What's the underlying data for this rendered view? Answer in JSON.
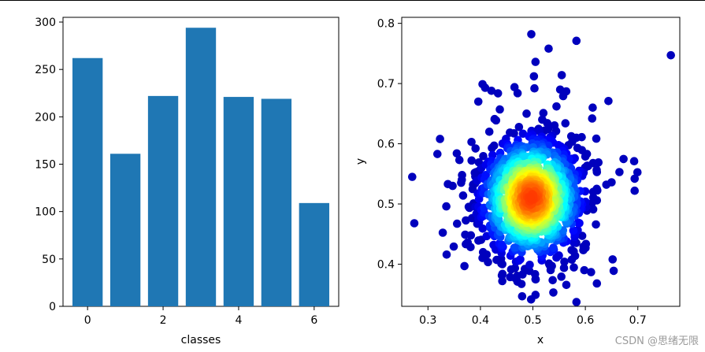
{
  "chart_data": [
    {
      "type": "bar",
      "categories": [
        0,
        1,
        2,
        3,
        4,
        5,
        6
      ],
      "values": [
        262,
        161,
        222,
        294,
        221,
        219,
        109
      ],
      "bar_color": "#1f77b4",
      "xlabel": "classes",
      "ylabel": "",
      "xlim": [
        -0.65,
        6.65
      ],
      "ylim": [
        0,
        305
      ],
      "xticks": [
        0,
        2,
        4,
        6
      ],
      "yticks": [
        0,
        50,
        100,
        150,
        200,
        250,
        300
      ],
      "grid": false
    },
    {
      "type": "scatter",
      "xlabel": "x",
      "ylabel": "y",
      "xlim": [
        0.25,
        0.78
      ],
      "ylim": [
        0.33,
        0.81
      ],
      "xticks": [
        0.3,
        0.4,
        0.5,
        0.6,
        0.7
      ],
      "yticks": [
        0.4,
        0.5,
        0.6,
        0.7,
        0.8
      ],
      "colormap": "jet",
      "density_range": [
        0,
        1
      ],
      "grid": false,
      "outlier_points": [
        {
          "x": 0.497,
          "y": 0.782
        },
        {
          "x": 0.583,
          "y": 0.771
        },
        {
          "x": 0.763,
          "y": 0.747
        },
        {
          "x": 0.53,
          "y": 0.758
        },
        {
          "x": 0.505,
          "y": 0.736
        },
        {
          "x": 0.502,
          "y": 0.712
        },
        {
          "x": 0.555,
          "y": 0.714
        },
        {
          "x": 0.552,
          "y": 0.69
        },
        {
          "x": 0.409,
          "y": 0.693
        },
        {
          "x": 0.404,
          "y": 0.699
        },
        {
          "x": 0.421,
          "y": 0.688
        },
        {
          "x": 0.465,
          "y": 0.694
        },
        {
          "x": 0.503,
          "y": 0.692
        },
        {
          "x": 0.396,
          "y": 0.67
        },
        {
          "x": 0.644,
          "y": 0.671
        },
        {
          "x": 0.437,
          "y": 0.657
        },
        {
          "x": 0.488,
          "y": 0.65
        },
        {
          "x": 0.614,
          "y": 0.66
        },
        {
          "x": 0.613,
          "y": 0.642
        },
        {
          "x": 0.545,
          "y": 0.662
        },
        {
          "x": 0.52,
          "y": 0.651
        },
        {
          "x": 0.323,
          "y": 0.608
        },
        {
          "x": 0.318,
          "y": 0.583
        },
        {
          "x": 0.355,
          "y": 0.584
        },
        {
          "x": 0.36,
          "y": 0.573
        },
        {
          "x": 0.383,
          "y": 0.603
        },
        {
          "x": 0.417,
          "y": 0.62
        },
        {
          "x": 0.427,
          "y": 0.641
        },
        {
          "x": 0.583,
          "y": 0.61
        },
        {
          "x": 0.585,
          "y": 0.593
        },
        {
          "x": 0.603,
          "y": 0.583
        },
        {
          "x": 0.625,
          "y": 0.569
        },
        {
          "x": 0.665,
          "y": 0.553
        },
        {
          "x": 0.693,
          "y": 0.571
        },
        {
          "x": 0.27,
          "y": 0.545
        },
        {
          "x": 0.338,
          "y": 0.533
        },
        {
          "x": 0.347,
          "y": 0.53
        },
        {
          "x": 0.392,
          "y": 0.553
        },
        {
          "x": 0.365,
          "y": 0.548
        },
        {
          "x": 0.386,
          "y": 0.532
        },
        {
          "x": 0.622,
          "y": 0.553
        },
        {
          "x": 0.64,
          "y": 0.532
        },
        {
          "x": 0.65,
          "y": 0.536
        },
        {
          "x": 0.694,
          "y": 0.542
        },
        {
          "x": 0.694,
          "y": 0.522
        },
        {
          "x": 0.335,
          "y": 0.496
        },
        {
          "x": 0.367,
          "y": 0.514
        },
        {
          "x": 0.387,
          "y": 0.501
        },
        {
          "x": 0.401,
          "y": 0.517
        },
        {
          "x": 0.591,
          "y": 0.496
        },
        {
          "x": 0.603,
          "y": 0.489
        },
        {
          "x": 0.615,
          "y": 0.52
        },
        {
          "x": 0.622,
          "y": 0.506
        },
        {
          "x": 0.274,
          "y": 0.468
        },
        {
          "x": 0.371,
          "y": 0.449
        },
        {
          "x": 0.394,
          "y": 0.467
        },
        {
          "x": 0.402,
          "y": 0.479
        },
        {
          "x": 0.586,
          "y": 0.469
        },
        {
          "x": 0.594,
          "y": 0.447
        },
        {
          "x": 0.578,
          "y": 0.436
        },
        {
          "x": 0.405,
          "y": 0.42
        },
        {
          "x": 0.412,
          "y": 0.416
        },
        {
          "x": 0.425,
          "y": 0.432
        },
        {
          "x": 0.44,
          "y": 0.401
        },
        {
          "x": 0.436,
          "y": 0.434
        },
        {
          "x": 0.476,
          "y": 0.408
        },
        {
          "x": 0.486,
          "y": 0.39
        },
        {
          "x": 0.494,
          "y": 0.399
        },
        {
          "x": 0.505,
          "y": 0.375
        },
        {
          "x": 0.505,
          "y": 0.349
        },
        {
          "x": 0.539,
          "y": 0.353
        },
        {
          "x": 0.545,
          "y": 0.411
        },
        {
          "x": 0.56,
          "y": 0.404
        },
        {
          "x": 0.598,
          "y": 0.39
        },
        {
          "x": 0.622,
          "y": 0.368
        },
        {
          "x": 0.652,
          "y": 0.408
        },
        {
          "x": 0.654,
          "y": 0.389
        }
      ],
      "cluster": {
        "center_x": 0.497,
        "center_y": 0.51,
        "sd_x": 0.05,
        "sd_y": 0.052,
        "count": 1100
      }
    }
  ],
  "watermark": "CSDN @思绪无限"
}
